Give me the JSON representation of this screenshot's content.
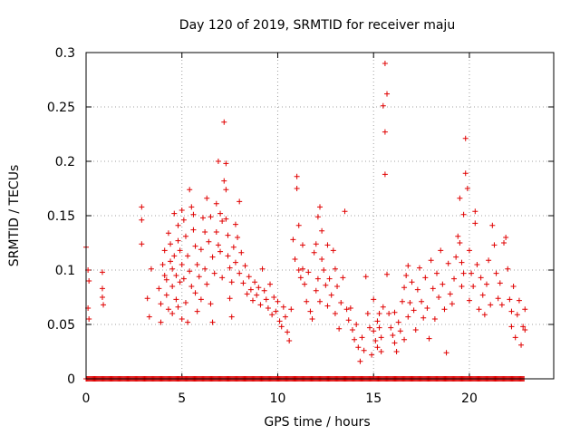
{
  "chart_data": {
    "type": "scatter",
    "title": "Day 120 of 2019, SRMTID for receiver maju",
    "xlabel": "GPS time / hours",
    "ylabel": "SRMTID / TECUs",
    "xlim": [
      0,
      24.4
    ],
    "ylim": [
      0,
      0.3
    ],
    "xticks": [
      0,
      5,
      10,
      15,
      20
    ],
    "xtick_labels": [
      "0",
      "5",
      "10",
      "15",
      "20"
    ],
    "yticks": [
      0,
      0.05,
      0.1,
      0.15,
      0.2,
      0.25,
      0.3
    ],
    "ytick_labels": [
      "0",
      "0.05",
      "0.1",
      "0.15",
      "0.2",
      "0.25",
      "0.3"
    ],
    "grid": true,
    "marker": "+",
    "color": "#e00000",
    "series": [
      {
        "name": "SRMTID",
        "points": [
          [
            0.0,
            0.121
          ],
          [
            0.1,
            0.1
          ],
          [
            0.15,
            0.09
          ],
          [
            0.1,
            0.065
          ],
          [
            0.15,
            0.055
          ],
          [
            0.85,
            0.098
          ],
          [
            0.85,
            0.083
          ],
          [
            0.85,
            0.075
          ],
          [
            0.9,
            0.068
          ],
          [
            2.9,
            0.158
          ],
          [
            2.9,
            0.146
          ],
          [
            2.9,
            0.124
          ],
          [
            3.2,
            0.074
          ],
          [
            3.3,
            0.057
          ],
          [
            3.4,
            0.101
          ],
          [
            3.8,
            0.083
          ],
          [
            3.9,
            0.069
          ],
          [
            3.9,
            0.052
          ],
          [
            4.0,
            0.105
          ],
          [
            4.1,
            0.118
          ],
          [
            4.1,
            0.095
          ],
          [
            4.2,
            0.091
          ],
          [
            4.2,
            0.077
          ],
          [
            4.3,
            0.064
          ],
          [
            4.3,
            0.134
          ],
          [
            4.4,
            0.124
          ],
          [
            4.4,
            0.108
          ],
          [
            4.5,
            0.101
          ],
          [
            4.5,
            0.085
          ],
          [
            4.5,
            0.06
          ],
          [
            4.6,
            0.152
          ],
          [
            4.6,
            0.113
          ],
          [
            4.7,
            0.095
          ],
          [
            4.7,
            0.073
          ],
          [
            4.8,
            0.141
          ],
          [
            4.8,
            0.127
          ],
          [
            4.8,
            0.066
          ],
          [
            4.9,
            0.118
          ],
          [
            4.9,
            0.089
          ],
          [
            5.0,
            0.155
          ],
          [
            5.0,
            0.105
          ],
          [
            5.0,
            0.055
          ],
          [
            5.1,
            0.146
          ],
          [
            5.1,
            0.092
          ],
          [
            5.2,
            0.131
          ],
          [
            5.2,
            0.07
          ],
          [
            5.3,
            0.113
          ],
          [
            5.3,
            0.052
          ],
          [
            5.4,
            0.174
          ],
          [
            5.4,
            0.099
          ],
          [
            5.5,
            0.158
          ],
          [
            5.5,
            0.085
          ],
          [
            5.6,
            0.151
          ],
          [
            5.6,
            0.137
          ],
          [
            5.7,
            0.122
          ],
          [
            5.7,
            0.079
          ],
          [
            5.8,
            0.105
          ],
          [
            5.8,
            0.062
          ],
          [
            5.9,
            0.094
          ],
          [
            6.0,
            0.119
          ],
          [
            6.0,
            0.073
          ],
          [
            6.1,
            0.148
          ],
          [
            6.2,
            0.135
          ],
          [
            6.2,
            0.101
          ],
          [
            6.3,
            0.166
          ],
          [
            6.3,
            0.087
          ],
          [
            6.4,
            0.126
          ],
          [
            6.5,
            0.149
          ],
          [
            6.5,
            0.069
          ],
          [
            6.6,
            0.112
          ],
          [
            6.6,
            0.052
          ],
          [
            6.7,
            0.097
          ],
          [
            6.8,
            0.161
          ],
          [
            6.8,
            0.135
          ],
          [
            6.9,
            0.2
          ],
          [
            6.9,
            0.123
          ],
          [
            7.0,
            0.152
          ],
          [
            7.0,
            0.117
          ],
          [
            7.1,
            0.145
          ],
          [
            7.1,
            0.093
          ],
          [
            7.2,
            0.236
          ],
          [
            7.2,
            0.182
          ],
          [
            7.3,
            0.198
          ],
          [
            7.3,
            0.174
          ],
          [
            7.3,
            0.147
          ],
          [
            7.4,
            0.132
          ],
          [
            7.4,
            0.113
          ],
          [
            7.5,
            0.102
          ],
          [
            7.5,
            0.074
          ],
          [
            7.6,
            0.089
          ],
          [
            7.6,
            0.057
          ],
          [
            7.7,
            0.121
          ],
          [
            7.8,
            0.142
          ],
          [
            7.8,
            0.107
          ],
          [
            7.9,
            0.13
          ],
          [
            8.0,
            0.163
          ],
          [
            8.0,
            0.097
          ],
          [
            8.1,
            0.116
          ],
          [
            8.2,
            0.088
          ],
          [
            8.3,
            0.104
          ],
          [
            8.4,
            0.078
          ],
          [
            8.5,
            0.094
          ],
          [
            8.6,
            0.082
          ],
          [
            8.7,
            0.072
          ],
          [
            8.8,
            0.089
          ],
          [
            8.9,
            0.077
          ],
          [
            9.0,
            0.084
          ],
          [
            9.1,
            0.068
          ],
          [
            9.2,
            0.101
          ],
          [
            9.3,
            0.081
          ],
          [
            9.4,
            0.073
          ],
          [
            9.5,
            0.065
          ],
          [
            9.6,
            0.087
          ],
          [
            9.7,
            0.059
          ],
          [
            9.8,
            0.075
          ],
          [
            9.9,
            0.062
          ],
          [
            10.0,
            0.071
          ],
          [
            10.1,
            0.053
          ],
          [
            10.2,
            0.048
          ],
          [
            10.3,
            0.066
          ],
          [
            10.4,
            0.057
          ],
          [
            10.5,
            0.043
          ],
          [
            10.6,
            0.035
          ],
          [
            10.7,
            0.064
          ],
          [
            10.8,
            0.128
          ],
          [
            10.9,
            0.11
          ],
          [
            11.0,
            0.186
          ],
          [
            11.0,
            0.175
          ],
          [
            11.1,
            0.141
          ],
          [
            11.1,
            0.1
          ],
          [
            11.2,
            0.093
          ],
          [
            11.3,
            0.123
          ],
          [
            11.3,
            0.101
          ],
          [
            11.4,
            0.087
          ],
          [
            11.5,
            0.071
          ],
          [
            11.6,
            0.098
          ],
          [
            11.7,
            0.062
          ],
          [
            11.8,
            0.055
          ],
          [
            11.9,
            0.116
          ],
          [
            12.0,
            0.124
          ],
          [
            12.0,
            0.081
          ],
          [
            12.1,
            0.149
          ],
          [
            12.1,
            0.092
          ],
          [
            12.2,
            0.158
          ],
          [
            12.2,
            0.071
          ],
          [
            12.3,
            0.136
          ],
          [
            12.3,
            0.11
          ],
          [
            12.4,
            0.1
          ],
          [
            12.5,
            0.086
          ],
          [
            12.6,
            0.123
          ],
          [
            12.6,
            0.067
          ],
          [
            12.7,
            0.092
          ],
          [
            12.8,
            0.077
          ],
          [
            12.9,
            0.118
          ],
          [
            13.0,
            0.101
          ],
          [
            13.0,
            0.06
          ],
          [
            13.1,
            0.085
          ],
          [
            13.2,
            0.046
          ],
          [
            13.3,
            0.07
          ],
          [
            13.4,
            0.093
          ],
          [
            13.5,
            0.154
          ],
          [
            13.6,
            0.064
          ],
          [
            13.7,
            0.054
          ],
          [
            13.8,
            0.065
          ],
          [
            13.9,
            0.045
          ],
          [
            14.0,
            0.036
          ],
          [
            14.1,
            0.05
          ],
          [
            14.2,
            0.029
          ],
          [
            14.3,
            0.016
          ],
          [
            14.4,
            0.038
          ],
          [
            14.5,
            0.026
          ],
          [
            14.6,
            0.094
          ],
          [
            14.7,
            0.06
          ],
          [
            14.8,
            0.047
          ],
          [
            14.9,
            0.022
          ],
          [
            15.0,
            0.044
          ],
          [
            15.0,
            0.073
          ],
          [
            15.1,
            0.035
          ],
          [
            15.2,
            0.053
          ],
          [
            15.2,
            0.029
          ],
          [
            15.3,
            0.047
          ],
          [
            15.3,
            0.06
          ],
          [
            15.4,
            0.038
          ],
          [
            15.4,
            0.025
          ],
          [
            15.5,
            0.066
          ],
          [
            15.5,
            0.251
          ],
          [
            15.6,
            0.29
          ],
          [
            15.6,
            0.227
          ],
          [
            15.6,
            0.188
          ],
          [
            15.7,
            0.262
          ],
          [
            15.7,
            0.096
          ],
          [
            15.8,
            0.06
          ],
          [
            15.9,
            0.047
          ],
          [
            16.0,
            0.04
          ],
          [
            16.1,
            0.061
          ],
          [
            16.1,
            0.033
          ],
          [
            16.2,
            0.025
          ],
          [
            16.3,
            0.052
          ],
          [
            16.4,
            0.044
          ],
          [
            16.5,
            0.071
          ],
          [
            16.6,
            0.084
          ],
          [
            16.6,
            0.036
          ],
          [
            16.7,
            0.095
          ],
          [
            16.8,
            0.104
          ],
          [
            16.8,
            0.057
          ],
          [
            16.9,
            0.07
          ],
          [
            17.0,
            0.089
          ],
          [
            17.1,
            0.063
          ],
          [
            17.2,
            0.045
          ],
          [
            17.3,
            0.082
          ],
          [
            17.4,
            0.102
          ],
          [
            17.5,
            0.071
          ],
          [
            17.6,
            0.056
          ],
          [
            17.7,
            0.093
          ],
          [
            17.8,
            0.065
          ],
          [
            17.9,
            0.037
          ],
          [
            18.0,
            0.109
          ],
          [
            18.1,
            0.083
          ],
          [
            18.2,
            0.055
          ],
          [
            18.3,
            0.097
          ],
          [
            18.4,
            0.075
          ],
          [
            18.5,
            0.118
          ],
          [
            18.6,
            0.087
          ],
          [
            18.7,
            0.064
          ],
          [
            18.8,
            0.024
          ],
          [
            18.9,
            0.106
          ],
          [
            19.0,
            0.078
          ],
          [
            19.1,
            0.069
          ],
          [
            19.2,
            0.092
          ],
          [
            19.3,
            0.112
          ],
          [
            19.4,
            0.131
          ],
          [
            19.5,
            0.125
          ],
          [
            19.5,
            0.166
          ],
          [
            19.6,
            0.107
          ],
          [
            19.6,
            0.085
          ],
          [
            19.7,
            0.151
          ],
          [
            19.7,
            0.097
          ],
          [
            19.8,
            0.221
          ],
          [
            19.8,
            0.189
          ],
          [
            19.9,
            0.175
          ],
          [
            20.0,
            0.118
          ],
          [
            20.0,
            0.072
          ],
          [
            20.1,
            0.097
          ],
          [
            20.2,
            0.085
          ],
          [
            20.3,
            0.143
          ],
          [
            20.3,
            0.154
          ],
          [
            20.4,
            0.105
          ],
          [
            20.5,
            0.064
          ],
          [
            20.6,
            0.093
          ],
          [
            20.7,
            0.077
          ],
          [
            20.8,
            0.059
          ],
          [
            20.9,
            0.087
          ],
          [
            21.0,
            0.109
          ],
          [
            21.1,
            0.068
          ],
          [
            21.2,
            0.141
          ],
          [
            21.3,
            0.123
          ],
          [
            21.4,
            0.097
          ],
          [
            21.5,
            0.074
          ],
          [
            21.6,
            0.088
          ],
          [
            21.7,
            0.068
          ],
          [
            21.8,
            0.125
          ],
          [
            21.9,
            0.13
          ],
          [
            22.0,
            0.101
          ],
          [
            22.1,
            0.073
          ],
          [
            22.2,
            0.062
          ],
          [
            22.2,
            0.048
          ],
          [
            22.3,
            0.085
          ],
          [
            22.4,
            0.038
          ],
          [
            22.5,
            0.059
          ],
          [
            22.6,
            0.072
          ],
          [
            22.7,
            0.031
          ],
          [
            22.8,
            0.048
          ],
          [
            22.9,
            0.064
          ],
          [
            22.9,
            0.045
          ]
        ]
      },
      {
        "name": "SRMTID (zero values)",
        "x_range": [
          0,
          22.9
        ],
        "y": 0,
        "dense": true
      }
    ]
  }
}
